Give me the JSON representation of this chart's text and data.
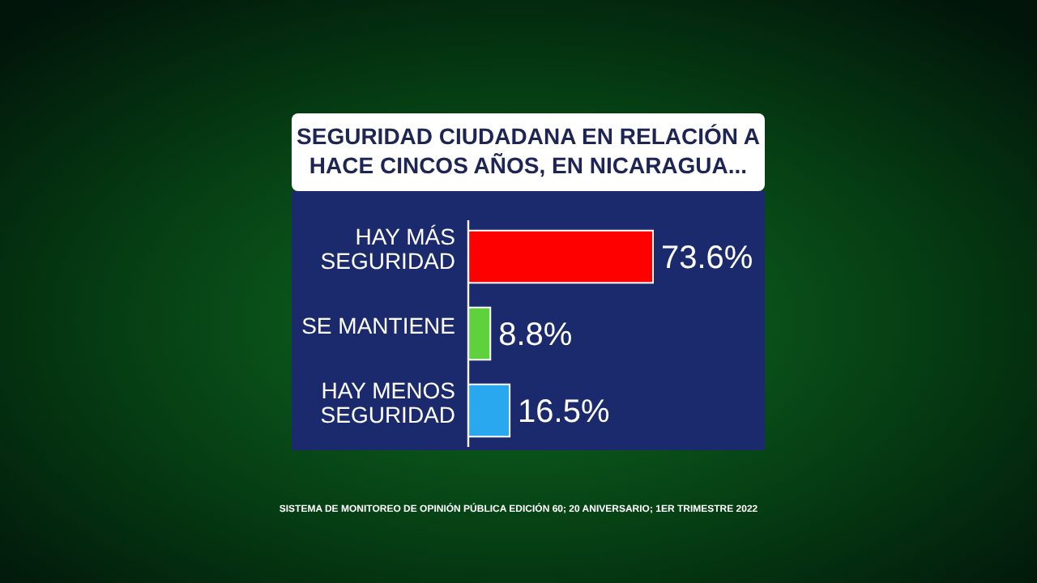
{
  "chart_data": {
    "type": "bar",
    "orientation": "horizontal",
    "title": "SEGURIDAD CIUDADANA EN RELACIÓN A HACE CINCOS AÑOS, EN NICARAGUA...",
    "categories": [
      "HAY MÁS SEGURIDAD",
      "SE MANTIENE",
      "HAY MENOS SEGURIDAD"
    ],
    "values": [
      73.6,
      8.8,
      16.5
    ],
    "colors": [
      "#ff0000",
      "#5fd13b",
      "#29a8f0"
    ],
    "value_labels": [
      "73.6%",
      "8.8%",
      "16.5%"
    ],
    "annotations": [
      "SISTEMA DE MONITOREO DE OPINIÓN PÚBLICA EDICIÓN 60; 20 ANIVERSARIO; 1ER TRIMESTRE 2022"
    ]
  }
}
